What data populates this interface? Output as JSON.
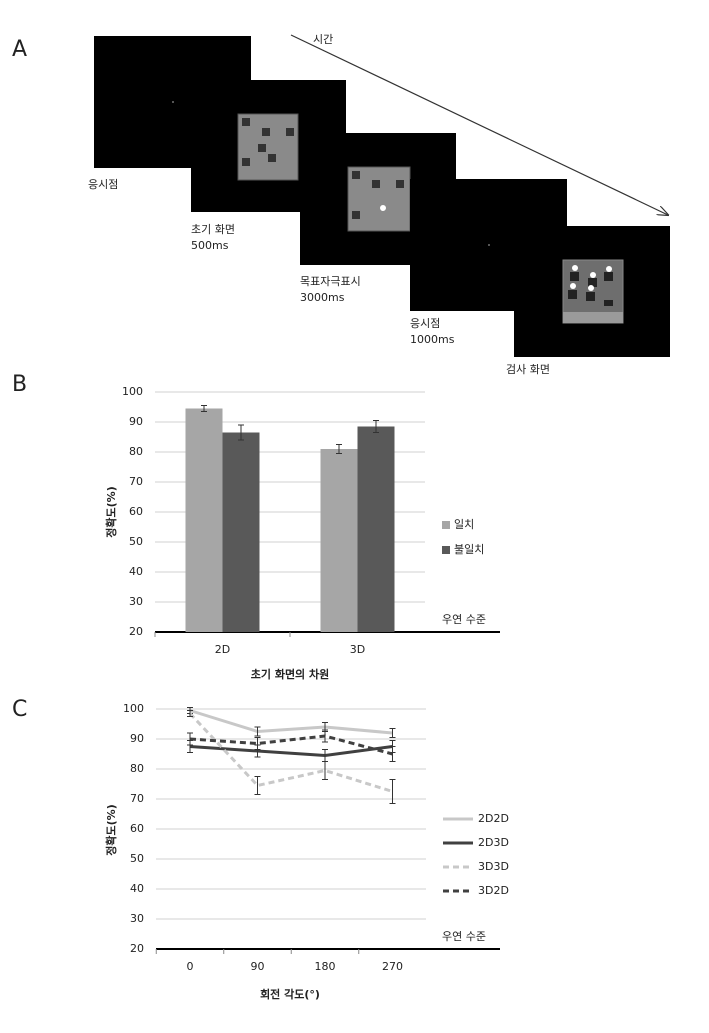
{
  "panel_a": {
    "label": "A",
    "time": "시간",
    "screens": [
      {
        "name": "응시점"
      },
      {
        "name": "초기 화면",
        "duration": "500ms"
      },
      {
        "name": "목표자극표시",
        "duration": "3000ms"
      },
      {
        "name": "응시점",
        "duration": "1000ms"
      },
      {
        "name": "검사 화면"
      }
    ]
  },
  "chart_data": [
    {
      "type": "bar",
      "label": "B",
      "ylabel": "정확도(%)",
      "xlabel": "초기 화면의 차원",
      "annotation": "우연 수준",
      "categories": [
        "2D",
        "3D"
      ],
      "series": [
        {
          "name": "일치",
          "color": "#a6a6a6",
          "values": [
            94.5,
            81
          ],
          "errors": [
            1,
            1.5
          ]
        },
        {
          "name": "불일치",
          "color": "#595959",
          "values": [
            86.5,
            88.5
          ],
          "errors": [
            2.5,
            2
          ]
        }
      ],
      "ylim": [
        20,
        100
      ],
      "yticks": [
        20,
        30,
        40,
        50,
        60,
        70,
        80,
        90,
        100
      ],
      "grid": true
    },
    {
      "type": "line",
      "label": "C",
      "ylabel": "정확도(%)",
      "xlabel": "회전 각도(°)",
      "annotation": "우연 수준",
      "categories": [
        "0",
        "90",
        "180",
        "270"
      ],
      "series": [
        {
          "name": "2D2D",
          "color": "#c8c8c8",
          "dash": false,
          "values": [
            99.5,
            92.5,
            94,
            92
          ],
          "errors": [
            1,
            1.5,
            1.5,
            1.5
          ]
        },
        {
          "name": "2D3D",
          "color": "#404040",
          "dash": false,
          "values": [
            87.5,
            86,
            84.5,
            87.5
          ],
          "errors": [
            2,
            2,
            2,
            2
          ]
        },
        {
          "name": "3D3D",
          "color": "#c8c8c8",
          "dash": true,
          "values": [
            98.5,
            74.5,
            79.5,
            72.5
          ],
          "errors": [
            1,
            3,
            3,
            4
          ]
        },
        {
          "name": "3D2D",
          "color": "#404040",
          "dash": true,
          "values": [
            90,
            88.5,
            91,
            85
          ],
          "errors": [
            2,
            2,
            2,
            2.5
          ]
        }
      ],
      "ylim": [
        20,
        100
      ],
      "yticks": [
        20,
        30,
        40,
        50,
        60,
        70,
        80,
        90,
        100
      ],
      "grid": true
    }
  ]
}
